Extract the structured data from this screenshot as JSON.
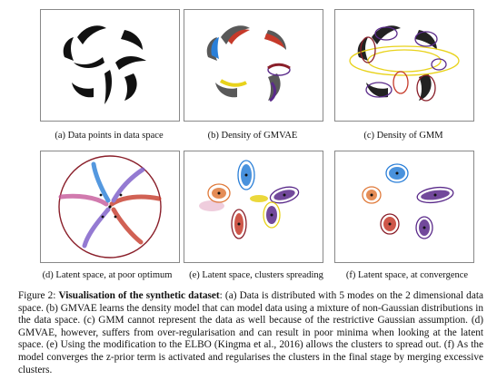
{
  "figure": {
    "label": "Figure 2:",
    "title": "Visualisation of the synthetic dataset",
    "caption_text": ": (a) Data is distributed with 5 modes on the 2 dimensional data space. (b) GMVAE learns the density model that can model data using a mixture of non-Gaussian distributions in the data space. (c) GMM cannot represent the data as well because of the restrictive Gaussian assumption. (d) GMVAE, however, suffers from over-regularisation and can result in poor minima when looking at the latent space. (e) Using the modification to the ELBO (Kingma et al., 2016) allows the clusters to spread out. (f) As the model converges the z-prior term is activated and regularises the clusters in the final stage by merging excessive clusters."
  },
  "subfigures": [
    {
      "id": "a",
      "caption": "(a) Data points in data space"
    },
    {
      "id": "b",
      "caption": "(b) Density of GMVAE"
    },
    {
      "id": "c",
      "caption": "(c) Density of GMM"
    },
    {
      "id": "d",
      "caption": "(d) Latent space, at poor optimum"
    },
    {
      "id": "e",
      "caption": "(e) Latent space, clusters spreading"
    },
    {
      "id": "f",
      "caption": "(f) Latent space, at convergence"
    }
  ],
  "colors": {
    "data": "#111111",
    "blue": "#2a7fd8",
    "red": "#c63a2a",
    "yellow": "#e8d21a",
    "purple": "#5a2a8a",
    "darkred": "#8a1f2a",
    "orange": "#e07a3a"
  }
}
